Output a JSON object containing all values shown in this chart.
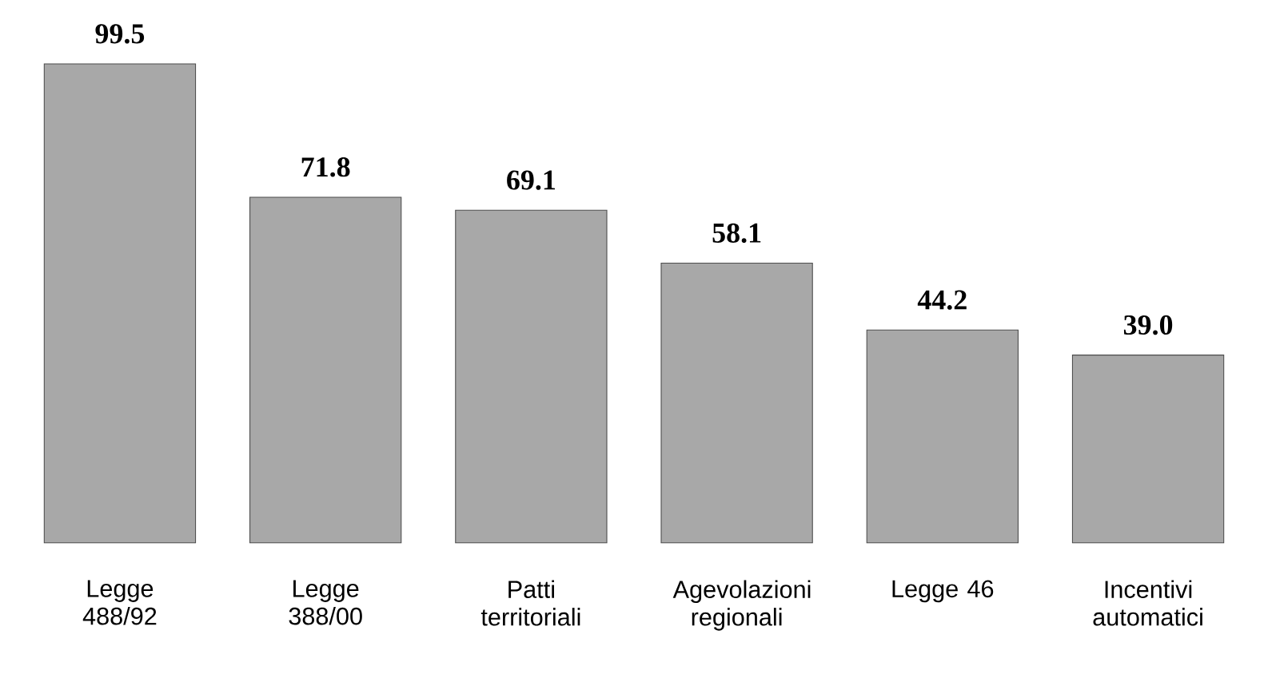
{
  "chart_data": {
    "type": "bar",
    "categories": [
      "Legge 488/92",
      "Legge 388/00",
      "Patti territoriali",
      "Agevolazioni regionali",
      "Legge 46",
      "Incentivi automatici"
    ],
    "values": [
      99.5,
      71.8,
      69.1,
      58.1,
      44.2,
      39.0
    ],
    "value_labels": [
      "99.5",
      "71.8",
      "69.1",
      "58.1",
      "44.2",
      "39.0"
    ],
    "color": "#a8a8a8"
  }
}
